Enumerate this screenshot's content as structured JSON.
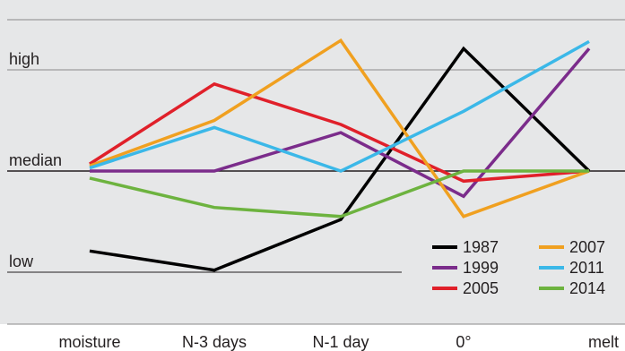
{
  "chart_data": {
    "type": "line",
    "title": "",
    "xlabel": "",
    "ylabel": "",
    "categories": [
      "moisture",
      "N-3 days",
      "N-1 day",
      "0°",
      "melt"
    ],
    "y_levels": {
      "high": 1,
      "median": 0,
      "low": -1
    },
    "ylim": [
      -1.8,
      1.3
    ],
    "grid": true,
    "legend_position": "bottom-right",
    "series": [
      {
        "name": "1987",
        "color": "#000000",
        "values": [
          -0.79,
          -0.98,
          -0.48,
          1.21,
          0.0
        ]
      },
      {
        "name": "1999",
        "color": "#7b2c8b",
        "values": [
          0.0,
          0.0,
          0.38,
          -0.25,
          1.21
        ]
      },
      {
        "name": "2005",
        "color": "#e0202a",
        "values": [
          0.07,
          0.86,
          0.46,
          -0.1,
          0.0
        ]
      },
      {
        "name": "2007",
        "color": "#f0a020",
        "values": [
          0.05,
          0.5,
          1.29,
          -0.45,
          0.0
        ]
      },
      {
        "name": "2011",
        "color": "#3bb8e8",
        "values": [
          0.03,
          0.43,
          0.0,
          0.59,
          1.28
        ]
      },
      {
        "name": "2014",
        "color": "#6db33f",
        "values": [
          -0.07,
          -0.36,
          -0.45,
          0.0,
          0.0
        ]
      }
    ]
  }
}
